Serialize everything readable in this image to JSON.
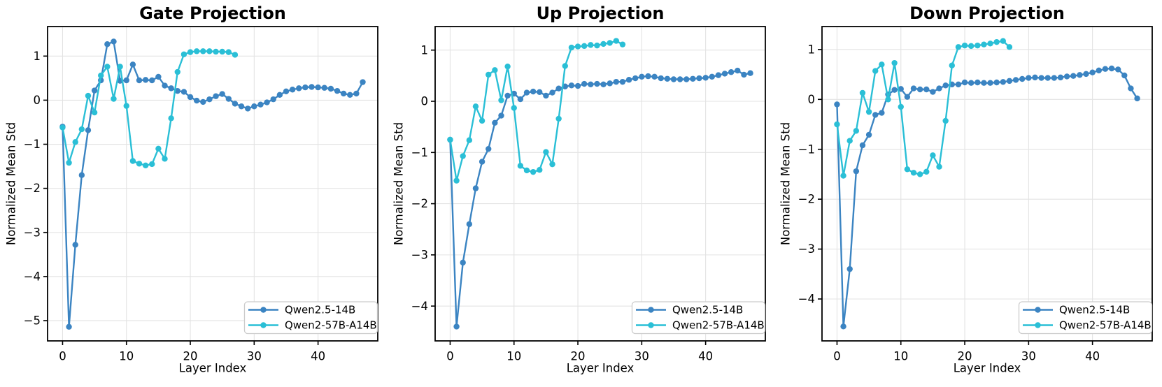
{
  "figure": {
    "background": "#ffffff",
    "axis_color": "#000000",
    "grid_color": "#e3e3e3",
    "legend_border_color": "#cccccc",
    "legend_background": "#ffffff",
    "series_colors": {
      "qwen25_14b": "#3b84c2",
      "qwen2_57b_a14b": "#2abfd6"
    },
    "xlabel": "Layer Index",
    "ylabel": "Normalized Mean Std",
    "legend_labels": [
      "Qwen2.5-14B",
      "Qwen2-57B-A14B"
    ]
  },
  "chart_data": [
    {
      "type": "line",
      "title": "Gate Projection",
      "xlabel": "Layer Index",
      "ylabel": "Normalized Mean Std",
      "xlim": [
        -2.35,
        49.35
      ],
      "ylim": [
        -5.46,
        1.67
      ],
      "xticks": [
        0,
        10,
        20,
        30,
        40
      ],
      "yticks": [
        1,
        0,
        -1,
        -2,
        -3,
        -4,
        -5
      ],
      "grid": true,
      "legend_position": "lower right",
      "series": [
        {
          "name": "Qwen2.5-14B",
          "color": "#3b84c2",
          "x": [
            0,
            1,
            2,
            3,
            4,
            5,
            6,
            7,
            8,
            9,
            10,
            11,
            12,
            13,
            14,
            15,
            16,
            17,
            18,
            19,
            20,
            21,
            22,
            23,
            24,
            25,
            26,
            27,
            28,
            29,
            30,
            31,
            32,
            33,
            34,
            35,
            36,
            37,
            38,
            39,
            40,
            41,
            42,
            43,
            44,
            45,
            46,
            47
          ],
          "y": [
            -0.6,
            -5.14,
            -3.28,
            -1.7,
            -0.68,
            0.22,
            0.45,
            1.27,
            1.33,
            0.44,
            0.45,
            0.81,
            0.45,
            0.46,
            0.45,
            0.53,
            0.33,
            0.27,
            0.21,
            0.19,
            0.07,
            -0.01,
            -0.04,
            0.02,
            0.09,
            0.14,
            0.03,
            -0.08,
            -0.14,
            -0.19,
            -0.14,
            -0.1,
            -0.05,
            0.02,
            0.12,
            0.2,
            0.24,
            0.27,
            0.29,
            0.3,
            0.29,
            0.28,
            0.26,
            0.21,
            0.15,
            0.12,
            0.15,
            0.41
          ]
        },
        {
          "name": "Qwen2-57B-A14B",
          "color": "#2abfd6",
          "x": [
            0,
            1,
            2,
            3,
            4,
            5,
            6,
            7,
            8,
            9,
            10,
            11,
            12,
            13,
            14,
            15,
            16,
            17,
            18,
            19,
            20,
            21,
            22,
            23,
            24,
            25,
            26,
            27
          ],
          "y": [
            -0.62,
            -1.42,
            -0.95,
            -0.66,
            0.1,
            -0.28,
            0.56,
            0.76,
            0.03,
            0.76,
            -0.13,
            -1.38,
            -1.44,
            -1.48,
            -1.45,
            -1.1,
            -1.33,
            -0.41,
            0.64,
            1.04,
            1.09,
            1.11,
            1.11,
            1.11,
            1.1,
            1.1,
            1.09,
            1.03
          ]
        }
      ]
    },
    {
      "type": "line",
      "title": "Up Projection",
      "xlabel": "Layer Index",
      "ylabel": "Normalized Mean Std",
      "xlim": [
        -2.35,
        49.35
      ],
      "ylim": [
        -4.68,
        1.46
      ],
      "xticks": [
        0,
        10,
        20,
        30,
        40
      ],
      "yticks": [
        1,
        0,
        -1,
        -2,
        -3,
        -4
      ],
      "grid": true,
      "legend_position": "lower right",
      "series": [
        {
          "name": "Qwen2.5-14B",
          "color": "#3b84c2",
          "x": [
            0,
            1,
            2,
            3,
            4,
            5,
            6,
            7,
            8,
            9,
            10,
            11,
            12,
            13,
            14,
            15,
            16,
            17,
            18,
            19,
            20,
            21,
            22,
            23,
            24,
            25,
            26,
            27,
            28,
            29,
            30,
            31,
            32,
            33,
            34,
            35,
            36,
            37,
            38,
            39,
            40,
            41,
            42,
            43,
            44,
            45,
            46,
            47
          ],
          "y": [
            -0.75,
            -4.4,
            -3.15,
            -2.4,
            -1.7,
            -1.18,
            -0.93,
            -0.42,
            -0.28,
            0.11,
            0.15,
            0.04,
            0.17,
            0.19,
            0.18,
            0.11,
            0.17,
            0.25,
            0.29,
            0.31,
            0.3,
            0.34,
            0.33,
            0.34,
            0.33,
            0.35,
            0.38,
            0.38,
            0.42,
            0.45,
            0.48,
            0.49,
            0.48,
            0.45,
            0.44,
            0.43,
            0.43,
            0.43,
            0.44,
            0.45,
            0.46,
            0.48,
            0.51,
            0.54,
            0.57,
            0.6,
            0.52,
            0.55
          ]
        },
        {
          "name": "Qwen2-57B-A14B",
          "color": "#2abfd6",
          "x": [
            0,
            1,
            2,
            3,
            4,
            5,
            6,
            7,
            8,
            9,
            10,
            11,
            12,
            13,
            14,
            15,
            16,
            17,
            18,
            19,
            20,
            21,
            22,
            23,
            24,
            25,
            26,
            27
          ],
          "y": [
            -0.75,
            -1.55,
            -1.07,
            -0.76,
            -0.1,
            -0.38,
            0.52,
            0.61,
            0.02,
            0.68,
            -0.13,
            -1.26,
            -1.35,
            -1.38,
            -1.34,
            -0.99,
            -1.23,
            -0.34,
            0.69,
            1.05,
            1.07,
            1.08,
            1.1,
            1.09,
            1.12,
            1.14,
            1.18,
            1.11
          ]
        }
      ]
    },
    {
      "type": "line",
      "title": "Down Projection",
      "xlabel": "Layer Index",
      "ylabel": "Normalized Mean Std",
      "xlim": [
        -2.35,
        49.35
      ],
      "ylim": [
        -4.84,
        1.46
      ],
      "xticks": [
        0,
        10,
        20,
        30,
        40
      ],
      "yticks": [
        1,
        0,
        -1,
        -2,
        -3,
        -4
      ],
      "grid": true,
      "legend_position": "lower right",
      "series": [
        {
          "name": "Qwen2.5-14B",
          "color": "#3b84c2",
          "x": [
            0,
            1,
            2,
            3,
            4,
            5,
            6,
            7,
            8,
            9,
            10,
            11,
            12,
            13,
            14,
            15,
            16,
            17,
            18,
            19,
            20,
            21,
            22,
            23,
            24,
            25,
            26,
            27,
            28,
            29,
            30,
            31,
            32,
            33,
            34,
            35,
            36,
            37,
            38,
            39,
            40,
            41,
            42,
            43,
            44,
            45,
            46,
            47
          ],
          "y": [
            -0.1,
            -4.55,
            -3.4,
            -1.44,
            -0.92,
            -0.71,
            -0.31,
            -0.27,
            0.1,
            0.19,
            0.21,
            0.05,
            0.22,
            0.2,
            0.2,
            0.15,
            0.22,
            0.28,
            0.3,
            0.3,
            0.34,
            0.33,
            0.34,
            0.33,
            0.33,
            0.34,
            0.35,
            0.37,
            0.39,
            0.41,
            0.43,
            0.44,
            0.43,
            0.43,
            0.43,
            0.44,
            0.46,
            0.47,
            0.49,
            0.51,
            0.54,
            0.58,
            0.61,
            0.62,
            0.6,
            0.48,
            0.22,
            0.02
          ]
        },
        {
          "name": "Qwen2-57B-A14B",
          "color": "#2abfd6",
          "x": [
            0,
            1,
            2,
            3,
            4,
            5,
            6,
            7,
            8,
            9,
            10,
            11,
            12,
            13,
            14,
            15,
            16,
            17,
            18,
            19,
            20,
            21,
            22,
            23,
            24,
            25,
            26,
            27
          ],
          "y": [
            -0.5,
            -1.53,
            -0.83,
            -0.63,
            0.13,
            -0.25,
            0.57,
            0.7,
            0.0,
            0.73,
            -0.15,
            -1.4,
            -1.47,
            -1.5,
            -1.45,
            -1.12,
            -1.35,
            -0.43,
            0.68,
            1.05,
            1.08,
            1.07,
            1.08,
            1.1,
            1.12,
            1.15,
            1.17,
            1.05
          ]
        }
      ]
    }
  ]
}
